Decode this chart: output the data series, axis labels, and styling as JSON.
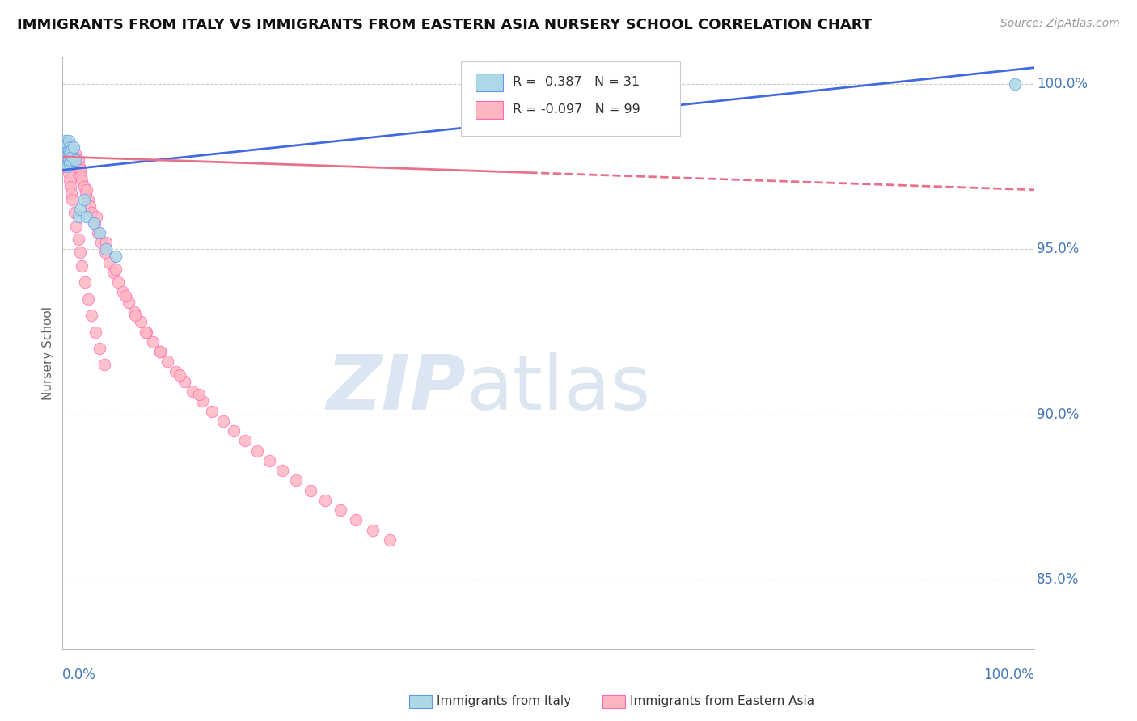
{
  "title": "IMMIGRANTS FROM ITALY VS IMMIGRANTS FROM EASTERN ASIA NURSERY SCHOOL CORRELATION CHART",
  "source": "Source: ZipAtlas.com",
  "ylabel": "Nursery School",
  "legend_italy": "Immigrants from Italy",
  "legend_east_asia": "Immigrants from Eastern Asia",
  "R_italy": 0.387,
  "N_italy": 31,
  "R_east_asia": -0.097,
  "N_east_asia": 99,
  "italy_fill_color": "#ADD8E6",
  "east_asia_fill_color": "#FFB6C1",
  "italy_edge_color": "#6495ED",
  "east_asia_edge_color": "#FF69B4",
  "italy_line_color": "#4169E1",
  "east_asia_line_color": "#E8708A",
  "watermark_zip_color": "#b8cce8",
  "watermark_atlas_color": "#a0b8d8",
  "axis_label_color": "#4477BB",
  "grid_color": "#cccccc",
  "xlim": [
    0.0,
    1.0
  ],
  "ylim": [
    0.829,
    1.008
  ],
  "yticks": [
    0.85,
    0.9,
    0.95,
    1.0
  ],
  "ytick_labels": [
    "85.0%",
    "90.0%",
    "95.0%",
    "100.0%"
  ],
  "italy_x": [
    0.001,
    0.002,
    0.002,
    0.003,
    0.003,
    0.003,
    0.004,
    0.004,
    0.005,
    0.005,
    0.005,
    0.006,
    0.006,
    0.006,
    0.007,
    0.007,
    0.008,
    0.008,
    0.009,
    0.01,
    0.011,
    0.013,
    0.016,
    0.018,
    0.022,
    0.025,
    0.032,
    0.038,
    0.045,
    0.055,
    0.98
  ],
  "italy_y": [
    0.98,
    0.978,
    0.982,
    0.976,
    0.979,
    0.983,
    0.977,
    0.981,
    0.978,
    0.982,
    0.975,
    0.98,
    0.977,
    0.983,
    0.979,
    0.976,
    0.981,
    0.977,
    0.98,
    0.978,
    0.981,
    0.977,
    0.96,
    0.962,
    0.965,
    0.96,
    0.958,
    0.955,
    0.95,
    0.948,
    1.0
  ],
  "east_asia_x": [
    0.001,
    0.002,
    0.002,
    0.003,
    0.003,
    0.004,
    0.004,
    0.005,
    0.005,
    0.006,
    0.006,
    0.007,
    0.007,
    0.008,
    0.008,
    0.009,
    0.009,
    0.01,
    0.011,
    0.012,
    0.013,
    0.014,
    0.015,
    0.016,
    0.017,
    0.018,
    0.019,
    0.02,
    0.022,
    0.024,
    0.026,
    0.028,
    0.03,
    0.033,
    0.036,
    0.04,
    0.044,
    0.048,
    0.052,
    0.057,
    0.062,
    0.068,
    0.074,
    0.08,
    0.086,
    0.093,
    0.1,
    0.108,
    0.116,
    0.125,
    0.134,
    0.144,
    0.154,
    0.165,
    0.176,
    0.188,
    0.2,
    0.213,
    0.226,
    0.24,
    0.255,
    0.27,
    0.286,
    0.302,
    0.319,
    0.337,
    0.002,
    0.003,
    0.004,
    0.005,
    0.006,
    0.007,
    0.008,
    0.009,
    0.01,
    0.012,
    0.014,
    0.016,
    0.018,
    0.02,
    0.023,
    0.026,
    0.03,
    0.034,
    0.038,
    0.043,
    0.025,
    0.035,
    0.045,
    0.055,
    0.065,
    0.075,
    0.085,
    0.1,
    0.12,
    0.14
  ],
  "east_asia_y": [
    0.979,
    0.977,
    0.981,
    0.975,
    0.982,
    0.978,
    0.976,
    0.98,
    0.977,
    0.982,
    0.975,
    0.979,
    0.976,
    0.981,
    0.975,
    0.979,
    0.977,
    0.98,
    0.978,
    0.976,
    0.979,
    0.977,
    0.975,
    0.977,
    0.975,
    0.974,
    0.972,
    0.971,
    0.969,
    0.967,
    0.965,
    0.963,
    0.961,
    0.958,
    0.955,
    0.952,
    0.949,
    0.946,
    0.943,
    0.94,
    0.937,
    0.934,
    0.931,
    0.928,
    0.925,
    0.922,
    0.919,
    0.916,
    0.913,
    0.91,
    0.907,
    0.904,
    0.901,
    0.898,
    0.895,
    0.892,
    0.889,
    0.886,
    0.883,
    0.88,
    0.877,
    0.874,
    0.871,
    0.868,
    0.865,
    0.862,
    0.981,
    0.979,
    0.977,
    0.975,
    0.973,
    0.971,
    0.969,
    0.967,
    0.965,
    0.961,
    0.957,
    0.953,
    0.949,
    0.945,
    0.94,
    0.935,
    0.93,
    0.925,
    0.92,
    0.915,
    0.968,
    0.96,
    0.952,
    0.944,
    0.936,
    0.93,
    0.925,
    0.919,
    0.912,
    0.906
  ]
}
